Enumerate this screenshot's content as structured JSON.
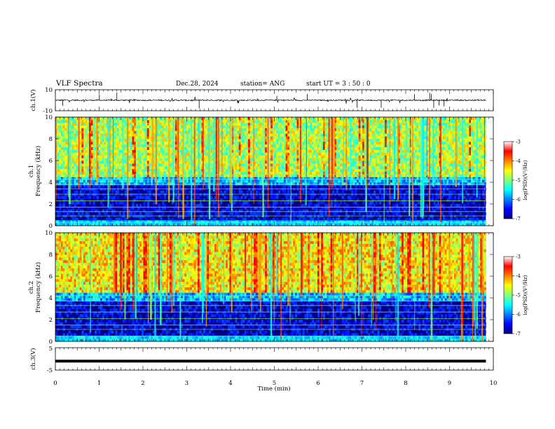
{
  "header": {
    "title": "VLF Spectra",
    "date": "Dec.28, 2024",
    "station": "station= ANG",
    "start": "start  UT =   3  : 50 : 0"
  },
  "colors": {
    "jet": [
      "#00007f",
      "#0000ff",
      "#007fff",
      "#00ffff",
      "#7fff7f",
      "#ffff00",
      "#ff7f00",
      "#ff0000",
      "#ffffff"
    ],
    "waveform": "#000000",
    "line_hum": "#9ae85a"
  },
  "chart_data": [
    {
      "type": "line",
      "id": "ch1-waveform",
      "ylabel": "ch.1(V)",
      "ylim": [
        -10,
        10
      ],
      "ytick_labels": [
        "-10",
        "10"
      ],
      "xlim": [
        0,
        10
      ],
      "data_extent_min": 9.83,
      "series": [
        {
          "baseline": 0.0,
          "noise_amplitude": 0.6,
          "spike_amplitude": 3.0
        }
      ]
    },
    {
      "type": "heatmap",
      "id": "ch1-spectrogram",
      "ylabel": "ch.1\nFrequency  (kHz)",
      "ylim": [
        0,
        10
      ],
      "ytick_labels": [
        "0",
        "2",
        "4",
        "6",
        "8",
        "10"
      ],
      "xlim": [
        0,
        10
      ],
      "data_extent_min": 9.83,
      "colorbar": {
        "label": "log(PSD)(V²/Hz)",
        "range": [
          -7,
          -3
        ],
        "tick_labels": [
          "-7",
          "-6",
          "-5",
          "-4",
          "-3"
        ]
      },
      "line_hum_khz": [
        0.3,
        0.9,
        1.3,
        1.7,
        2.3,
        2.9,
        3.4,
        3.8,
        4.3,
        4.7
      ]
    },
    {
      "type": "heatmap",
      "id": "ch2-spectrogram",
      "ylabel": "ch.2\nFrequency  (kHz)",
      "ylim": [
        0,
        10
      ],
      "ytick_labels": [
        "0",
        "2",
        "4",
        "6",
        "8",
        "10"
      ],
      "xlim": [
        0,
        10
      ],
      "data_extent_min": 9.83,
      "colorbar": {
        "label": "log(PSD)(V²/Hz)",
        "range": [
          -7,
          -3
        ],
        "tick_labels": [
          "-7",
          "-6",
          "-5",
          "-4",
          "-3"
        ]
      },
      "line_hum_khz": [
        0.5,
        1.1,
        1.5,
        2.1,
        2.7,
        3.3,
        3.7,
        4.2
      ]
    },
    {
      "type": "line",
      "id": "ch3-waveform",
      "ylabel": "ch.3(V)",
      "ylim": [
        -5,
        5
      ],
      "ytick_labels": [
        "-5",
        "5"
      ],
      "xlim": [
        0,
        10
      ],
      "data_extent_min": 9.83,
      "series": [
        {
          "baseline": -1.0,
          "noise_amplitude": 0.1
        }
      ]
    }
  ],
  "xaxis": {
    "label": "Time  (min)",
    "tick_labels": [
      "0",
      "1",
      "2",
      "3",
      "4",
      "5",
      "6",
      "7",
      "8",
      "9",
      "10"
    ]
  }
}
